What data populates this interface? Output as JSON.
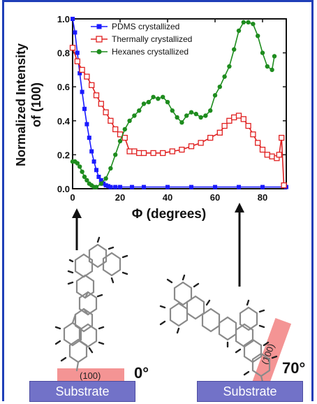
{
  "chart_data": {
    "type": "line",
    "xlabel": "Φ (degrees)",
    "ylabel": "Normalized Intensity of (100)",
    "xlim": [
      0,
      90
    ],
    "ylim": [
      0,
      1.0
    ],
    "xticks": [
      "0",
      "20",
      "40",
      "60",
      "80"
    ],
    "yticks": [
      "0.0",
      "0.2",
      "0.4",
      "0.6",
      "0.8",
      "1.0"
    ],
    "legend_position": "top",
    "series": [
      {
        "name": "PDMS crystallized",
        "color": "#1a1aff",
        "marker": "filled-square",
        "x": [
          0,
          1,
          2,
          3,
          4,
          5,
          6,
          7,
          8,
          9,
          10,
          11,
          12,
          13,
          14,
          15,
          16,
          18,
          20,
          25,
          30,
          40,
          50,
          60,
          70,
          80,
          90
        ],
        "y": [
          1.0,
          0.92,
          0.8,
          0.68,
          0.57,
          0.47,
          0.38,
          0.3,
          0.22,
          0.16,
          0.11,
          0.07,
          0.05,
          0.03,
          0.02,
          0.015,
          0.01,
          0.01,
          0.01,
          0.01,
          0.01,
          0.01,
          0.01,
          0.01,
          0.01,
          0.01,
          0.01
        ]
      },
      {
        "name": "Thermally crystallized",
        "color": "#e02020",
        "marker": "open-square",
        "x": [
          0,
          2,
          4,
          6,
          8,
          10,
          12,
          14,
          16,
          18,
          20,
          22,
          24,
          26,
          28,
          30,
          34,
          38,
          42,
          46,
          50,
          54,
          58,
          62,
          64,
          66,
          68,
          70,
          72,
          74,
          76,
          78,
          80,
          82,
          84,
          86,
          87,
          88,
          89
        ],
        "y": [
          0.83,
          0.75,
          0.7,
          0.66,
          0.61,
          0.55,
          0.5,
          0.45,
          0.4,
          0.35,
          0.32,
          0.3,
          0.22,
          0.22,
          0.21,
          0.21,
          0.21,
          0.21,
          0.22,
          0.23,
          0.25,
          0.27,
          0.3,
          0.33,
          0.37,
          0.4,
          0.42,
          0.43,
          0.41,
          0.37,
          0.32,
          0.27,
          0.23,
          0.2,
          0.19,
          0.18,
          0.2,
          0.3,
          0.02
        ]
      },
      {
        "name": "Hexanes crystallized",
        "color": "#1e8c1e",
        "marker": "filled-circle",
        "x": [
          0,
          1,
          2,
          3,
          4,
          5,
          6,
          7,
          8,
          9,
          10,
          12,
          14,
          16,
          18,
          20,
          22,
          24,
          26,
          28,
          30,
          32,
          34,
          36,
          38,
          40,
          42,
          44,
          46,
          48,
          50,
          52,
          54,
          56,
          58,
          60,
          62,
          64,
          66,
          68,
          70,
          72,
          74,
          76,
          78,
          80,
          82,
          84,
          85
        ],
        "y": [
          0.16,
          0.16,
          0.15,
          0.13,
          0.1,
          0.07,
          0.05,
          0.03,
          0.02,
          0.01,
          0.01,
          0.03,
          0.06,
          0.12,
          0.2,
          0.28,
          0.35,
          0.4,
          0.43,
          0.46,
          0.5,
          0.51,
          0.54,
          0.53,
          0.54,
          0.51,
          0.46,
          0.42,
          0.39,
          0.43,
          0.45,
          0.44,
          0.42,
          0.43,
          0.46,
          0.55,
          0.6,
          0.66,
          0.72,
          0.82,
          0.93,
          0.98,
          0.98,
          0.97,
          0.9,
          0.8,
          0.72,
          0.7,
          0.78
        ]
      }
    ]
  },
  "illustration": {
    "left_label": "0°",
    "right_label": "70°",
    "left_plane_label": "(100)",
    "right_plane_label": "(100)",
    "left_substrate": "Substrate",
    "right_substrate": "Substrate",
    "highlight_color": "#f07070",
    "substrate_color": "#7272c8"
  }
}
